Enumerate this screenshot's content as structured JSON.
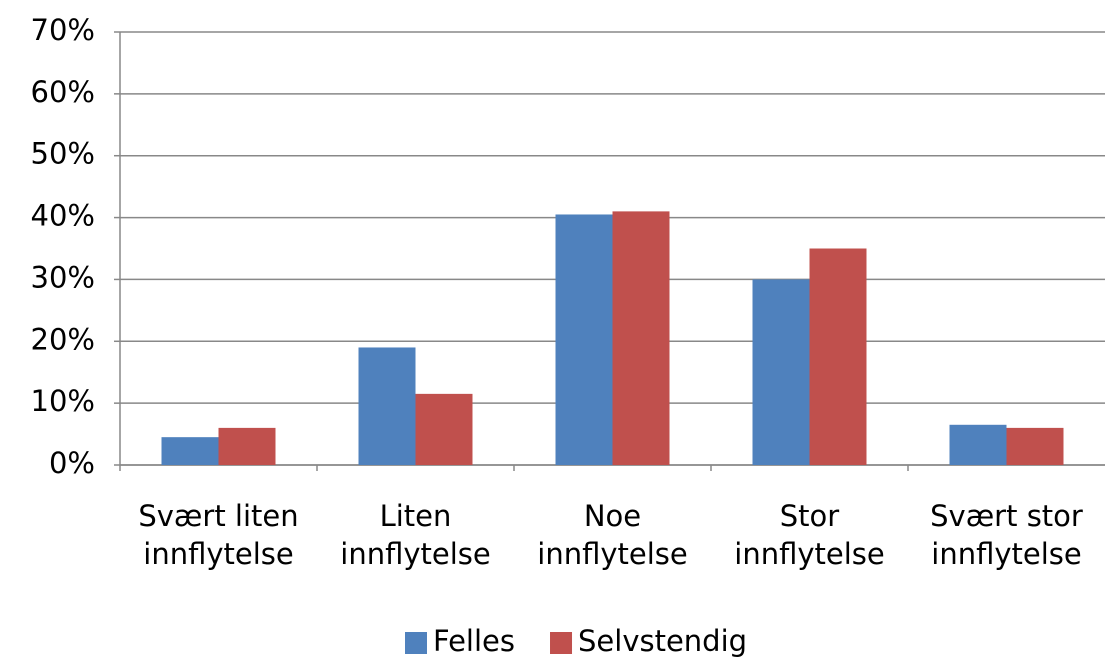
{
  "chart_data": {
    "type": "bar",
    "categories": [
      "Svært liten innflytelse",
      "Liten innflytelse",
      "Noe innflytelse",
      "Stor innflytelse",
      "Svært stor innflytelse"
    ],
    "series": [
      {
        "name": "Felles",
        "color": "#4f81bd",
        "values": [
          4.5,
          19,
          40.5,
          30,
          6.5
        ]
      },
      {
        "name": "Selvstendig",
        "color": "#c0504d",
        "values": [
          6,
          11.5,
          41,
          35,
          6
        ]
      }
    ],
    "ylim": [
      0,
      70
    ],
    "yticks": [
      {
        "value": 0,
        "label": "0%"
      },
      {
        "value": 10,
        "label": "10%"
      },
      {
        "value": 20,
        "label": "20%"
      },
      {
        "value": 30,
        "label": "30%"
      },
      {
        "value": 40,
        "label": "40%"
      },
      {
        "value": 50,
        "label": "50%"
      },
      {
        "value": 60,
        "label": "60%"
      },
      {
        "value": 70,
        "label": "70%"
      }
    ],
    "grid": true,
    "legend": "bottom"
  }
}
